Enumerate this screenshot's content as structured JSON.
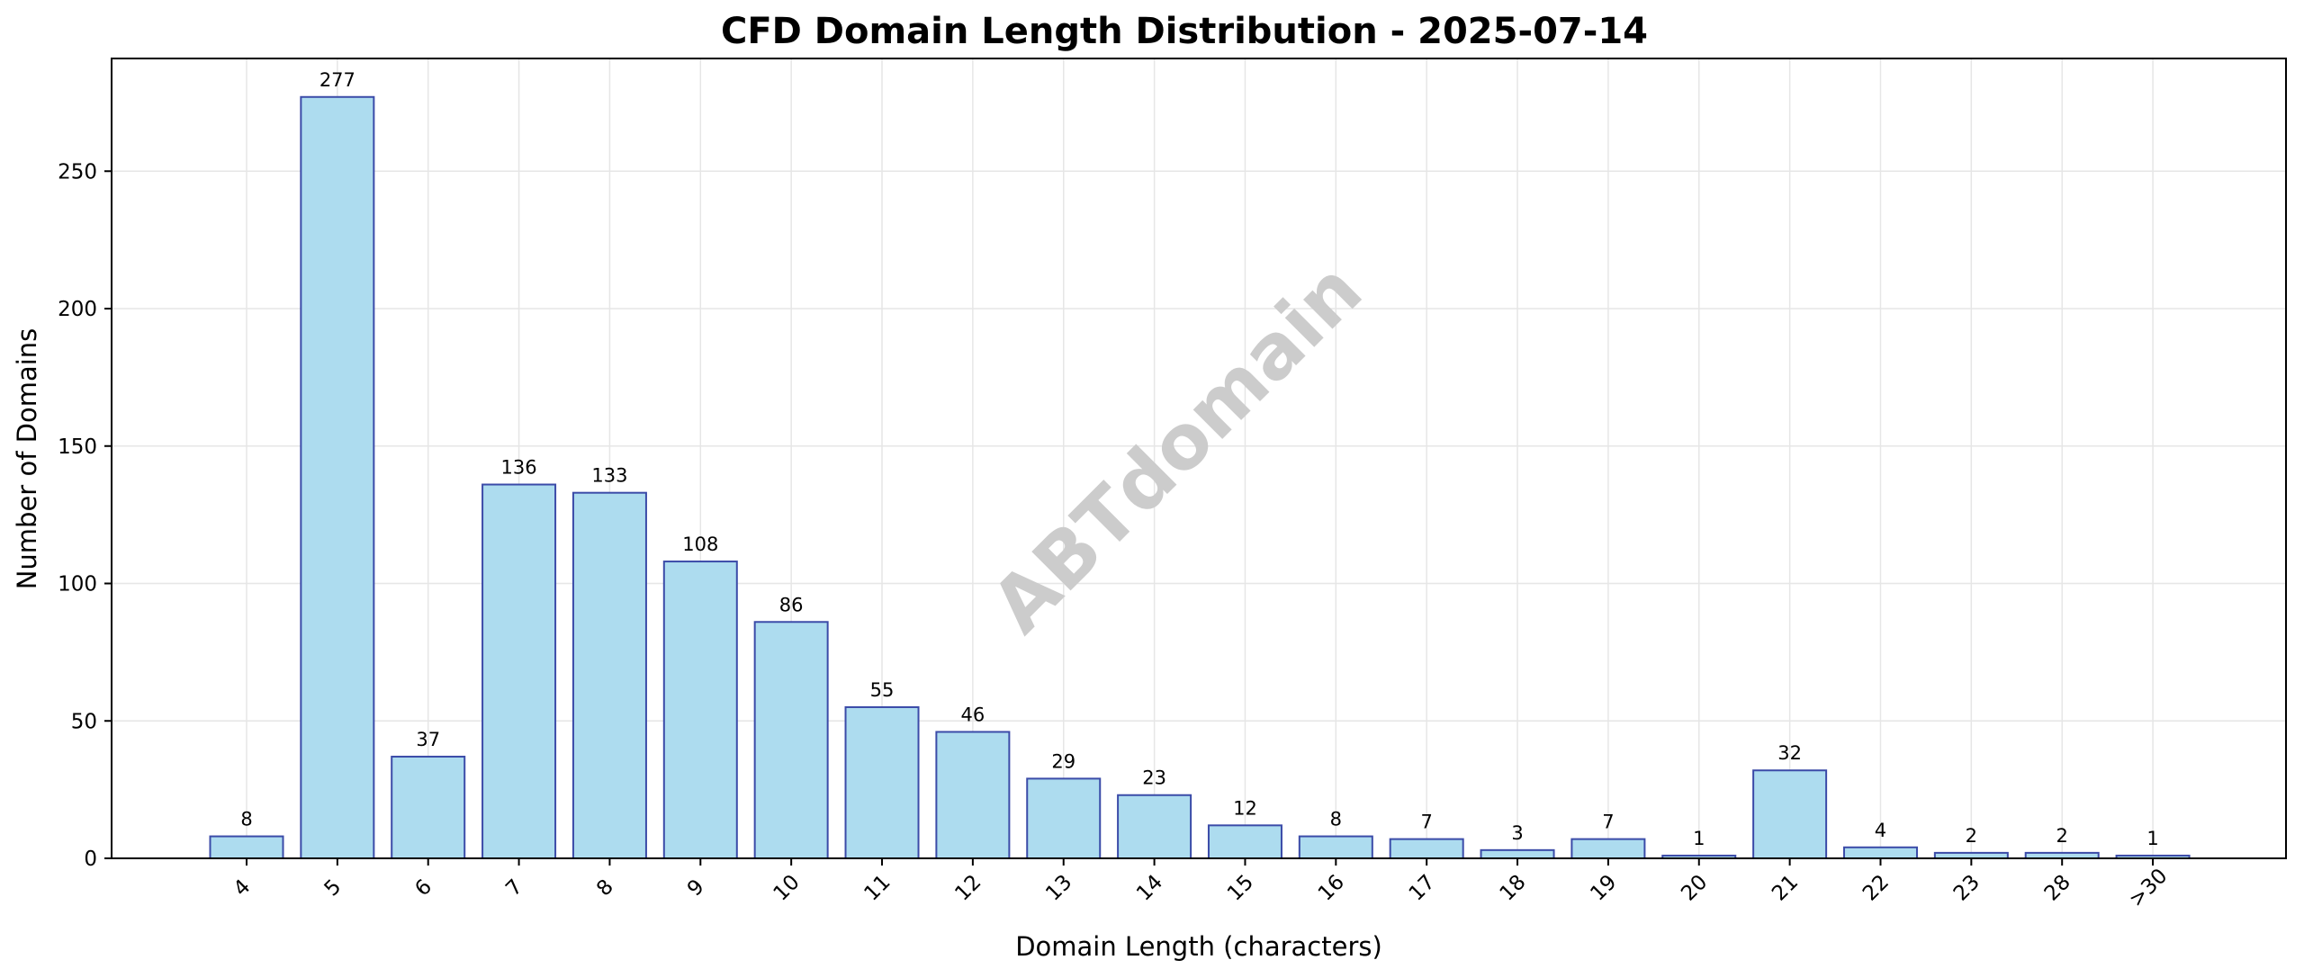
{
  "chart_data": {
    "type": "bar",
    "title": "CFD Domain Length Distribution - 2025-07-14",
    "xlabel": "Domain Length (characters)",
    "ylabel": "Number of Domains",
    "categories": [
      "4",
      "5",
      "6",
      "7",
      "8",
      "9",
      "10",
      "11",
      "12",
      "13",
      "14",
      "15",
      "16",
      "17",
      "18",
      "19",
      "20",
      "21",
      "22",
      "23",
      "28",
      ">30"
    ],
    "values": [
      8,
      277,
      37,
      136,
      133,
      108,
      86,
      55,
      46,
      29,
      23,
      12,
      8,
      7,
      3,
      7,
      1,
      32,
      4,
      2,
      2,
      1
    ],
    "ylim": [
      0,
      291
    ],
    "yticks": [
      0,
      50,
      100,
      150,
      200,
      250
    ],
    "grid": true,
    "bar_color": "#ADDCEF",
    "edge_color": "#3B4BA8",
    "watermark": "ABTdomain",
    "watermark_color": "#CCCCCC"
  }
}
